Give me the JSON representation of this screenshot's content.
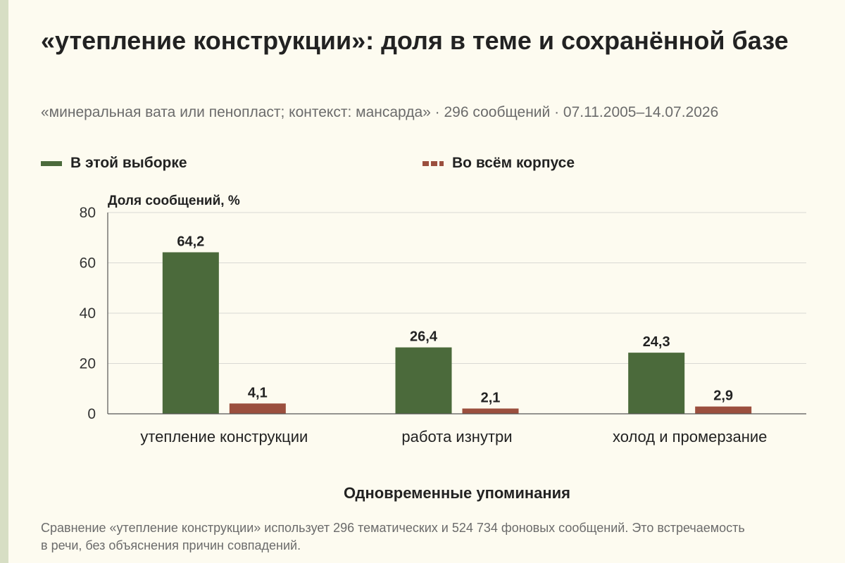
{
  "header": {
    "title": "«утепление конструкции»: доля в теме и сохранённой базе",
    "subtitle": "«минеральная вата или пенопласт; контекст: мансарда» · 296 сообщений · 07.11.2005–14.07.2026"
  },
  "legend": {
    "items": [
      {
        "label": "В этой выборке",
        "color": "#4b6a3b",
        "style": "solid"
      },
      {
        "label": "Во всём корпусе",
        "color": "#9b4f3e",
        "style": "dashed"
      }
    ]
  },
  "chart_data": {
    "type": "bar",
    "ylabel": "Доля сообщений, %",
    "xlabel": "Одновременные упоминания",
    "ylim": [
      0,
      80
    ],
    "yticks": [
      0,
      20,
      40,
      60,
      80
    ],
    "grid": true,
    "legend_position": "top",
    "categories": [
      "утепление конструкции",
      "работа изнутри",
      "холод и промерзание"
    ],
    "series": [
      {
        "name": "В этой выборке",
        "color": "#4b6a3b",
        "values": [
          64.2,
          26.4,
          24.3
        ],
        "labels": [
          "64,2",
          "26,4",
          "24,3"
        ]
      },
      {
        "name": "Во всём корпусе",
        "color": "#9b4f3e",
        "values": [
          4.1,
          2.1,
          2.9
        ],
        "labels": [
          "4,1",
          "2,1",
          "2,9"
        ]
      }
    ]
  },
  "footnote": "Сравнение «утепление конструкции» использует 296 тематических и 524 734 фоновых сообщений. Это встречаемость в речи, без объяснения причин совпадений."
}
